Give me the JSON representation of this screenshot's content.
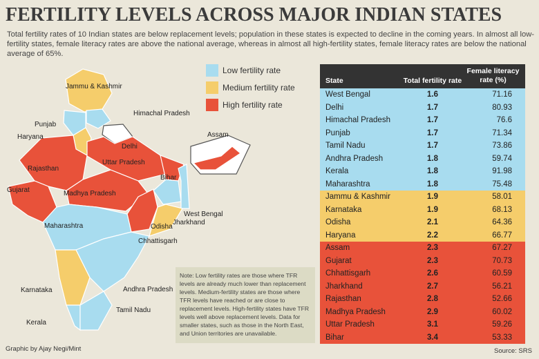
{
  "title": "FERTILITY LEVELS ACROSS MAJOR INDIAN STATES",
  "subtitle": "Total fertility rates of 10 Indian states are below replacement levels; population in these states is expected to decline in the coming years. In almost all low-fertility states, female literacy rates are above the national average, whereas in almost all high-fertility states, female literacy rates are below the national average of 65%.",
  "colors": {
    "low": "#a8dcef",
    "medium": "#f5cd6b",
    "high": "#e8523a",
    "nodata": "#ffffff",
    "header": "#333333"
  },
  "legend": [
    {
      "label": "Low fertility rate",
      "key": "low"
    },
    {
      "label": "Medium fertility rate",
      "key": "medium"
    },
    {
      "label": "High fertility rate",
      "key": "high"
    }
  ],
  "map_labels": [
    "Jammu & Kashmir",
    "Himachal Pradesh",
    "Punjab",
    "Haryana",
    "Delhi",
    "Assam",
    "Rajasthan",
    "Uttar Pradesh",
    "Bihar",
    "Gujarat",
    "Madhya Pradesh",
    "West Bengal",
    "Odisha",
    "Jharkhand",
    "Maharashtra",
    "Chhattisgarh",
    "Andhra Pradesh",
    "Karnataka",
    "Tamil Nadu",
    "Kerala"
  ],
  "note": "Note: Low fertility rates are those where TFR levels are already much lower than replacement levels. Medium-fertility states are those where TFR levels have reached or are close to replacement levels. High-fertility states have TFR levels well above replacement levels. Data for smaller states, such as those in the North East, and Union territories are unavailable.",
  "credit": "Graphic by Ajay Negi/Mint",
  "source": "Source: SRS",
  "chart_data": {
    "type": "table",
    "columns": [
      "State",
      "Total fertility rate",
      "Female literacy rate (%)"
    ],
    "rows": [
      {
        "state": "West Bengal",
        "tfr": "1.6",
        "literacy": "71.16",
        "level": "low"
      },
      {
        "state": "Delhi",
        "tfr": "1.7",
        "literacy": "80.93",
        "level": "low"
      },
      {
        "state": "Himachal Pradesh",
        "tfr": "1.7",
        "literacy": "76.6",
        "level": "low"
      },
      {
        "state": "Punjab",
        "tfr": "1.7",
        "literacy": "71.34",
        "level": "low"
      },
      {
        "state": "Tamil Nadu",
        "tfr": "1.7",
        "literacy": "73.86",
        "level": "low"
      },
      {
        "state": "Andhra Pradesh",
        "tfr": "1.8",
        "literacy": "59.74",
        "level": "low"
      },
      {
        "state": "Kerala",
        "tfr": "1.8",
        "literacy": "91.98",
        "level": "low"
      },
      {
        "state": "Maharashtra",
        "tfr": "1.8",
        "literacy": "75.48",
        "level": "low"
      },
      {
        "state": "Jammu & Kashmir",
        "tfr": "1.9",
        "literacy": "58.01",
        "level": "medium"
      },
      {
        "state": "Karnataka",
        "tfr": "1.9",
        "literacy": "68.13",
        "level": "medium"
      },
      {
        "state": "Odisha",
        "tfr": "2.1",
        "literacy": "64.36",
        "level": "medium"
      },
      {
        "state": "Haryana",
        "tfr": "2.2",
        "literacy": "66.77",
        "level": "medium"
      },
      {
        "state": "Assam",
        "tfr": "2.3",
        "literacy": "67.27",
        "level": "high"
      },
      {
        "state": "Gujarat",
        "tfr": "2.3",
        "literacy": "70.73",
        "level": "high"
      },
      {
        "state": "Chhattisgarh",
        "tfr": "2.6",
        "literacy": "60.59",
        "level": "high"
      },
      {
        "state": "Jharkhand",
        "tfr": "2.7",
        "literacy": "56.21",
        "level": "high"
      },
      {
        "state": "Rajasthan",
        "tfr": "2.8",
        "literacy": "52.66",
        "level": "high"
      },
      {
        "state": "Madhya Pradesh",
        "tfr": "2.9",
        "literacy": "60.02",
        "level": "high"
      },
      {
        "state": "Uttar Pradesh",
        "tfr": "3.1",
        "literacy": "59.26",
        "level": "high"
      },
      {
        "state": "Bihar",
        "tfr": "3.4",
        "literacy": "53.33",
        "level": "high"
      }
    ]
  }
}
